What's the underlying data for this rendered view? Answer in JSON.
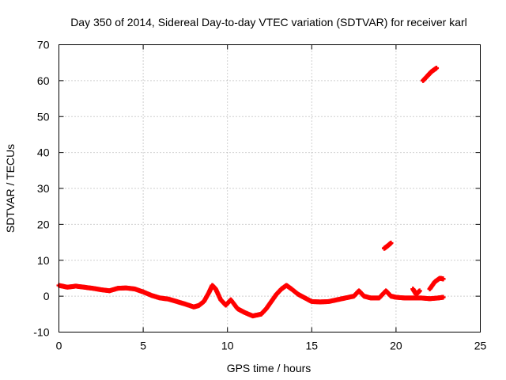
{
  "chart_data": {
    "type": "scatter",
    "title": "Day 350 of 2014, Sidereal Day-to-day VTEC variation (SDTVAR) for receiver karl",
    "xlabel": "GPS time / hours",
    "ylabel": "SDTVAR / TECUs",
    "xlim": [
      0,
      25
    ],
    "ylim": [
      -10,
      70
    ],
    "xticks": [
      0,
      5,
      10,
      15,
      20,
      25
    ],
    "yticks": [
      -10,
      0,
      10,
      20,
      30,
      40,
      50,
      60,
      70
    ],
    "grid": true,
    "series": [
      {
        "name": "SDTVAR",
        "color": "#ff0000",
        "marker": "plus",
        "segments": [
          {
            "name": "main-trace",
            "points": [
              [
                0.0,
                3.0
              ],
              [
                0.5,
                2.5
              ],
              [
                1.0,
                2.8
              ],
              [
                1.5,
                2.5
              ],
              [
                2.0,
                2.2
              ],
              [
                2.5,
                1.8
              ],
              [
                3.0,
                1.5
              ],
              [
                3.5,
                2.2
              ],
              [
                4.0,
                2.3
              ],
              [
                4.5,
                2.0
              ],
              [
                5.0,
                1.2
              ],
              [
                5.5,
                0.2
              ],
              [
                6.0,
                -0.5
              ],
              [
                6.5,
                -0.8
              ],
              [
                7.0,
                -1.5
              ],
              [
                7.5,
                -2.2
              ],
              [
                8.0,
                -3.0
              ],
              [
                8.3,
                -2.6
              ],
              [
                8.6,
                -1.5
              ],
              [
                8.9,
                1.0
              ],
              [
                9.1,
                3.0
              ],
              [
                9.3,
                2.0
              ],
              [
                9.6,
                -1.0
              ],
              [
                9.9,
                -2.5
              ],
              [
                10.2,
                -1.0
              ],
              [
                10.6,
                -3.5
              ],
              [
                11.0,
                -4.5
              ],
              [
                11.5,
                -5.5
              ],
              [
                12.0,
                -5.0
              ],
              [
                12.3,
                -3.5
              ],
              [
                12.6,
                -1.5
              ],
              [
                12.9,
                0.5
              ],
              [
                13.2,
                2.0
              ],
              [
                13.5,
                3.0
              ],
              [
                13.8,
                2.0
              ],
              [
                14.2,
                0.5
              ],
              [
                14.6,
                -0.5
              ],
              [
                15.0,
                -1.5
              ],
              [
                15.5,
                -1.6
              ],
              [
                16.0,
                -1.5
              ],
              [
                16.5,
                -1.0
              ],
              [
                17.0,
                -0.5
              ],
              [
                17.5,
                0.0
              ],
              [
                17.8,
                1.5
              ],
              [
                18.1,
                0.0
              ],
              [
                18.5,
                -0.5
              ],
              [
                19.0,
                -0.5
              ],
              [
                19.4,
                1.5
              ],
              [
                19.7,
                0.0
              ],
              [
                20.0,
                -0.3
              ],
              [
                20.5,
                -0.5
              ],
              [
                21.0,
                -0.5
              ],
              [
                21.5,
                -0.5
              ],
              [
                22.0,
                -0.7
              ],
              [
                22.5,
                -0.5
              ],
              [
                22.8,
                -0.3
              ]
            ]
          },
          {
            "name": "cluster-20",
            "points": [
              [
                19.3,
                13.3
              ],
              [
                19.5,
                14.0
              ],
              [
                19.7,
                14.8
              ]
            ]
          },
          {
            "name": "cluster-21",
            "points": [
              [
                21.0,
                2.0
              ],
              [
                21.2,
                0.5
              ],
              [
                21.4,
                1.5
              ]
            ]
          },
          {
            "name": "cluster-22",
            "points": [
              [
                22.0,
                2.0
              ],
              [
                22.3,
                4.0
              ],
              [
                22.6,
                5.0
              ],
              [
                22.8,
                4.8
              ]
            ]
          },
          {
            "name": "cluster-60",
            "points": [
              [
                21.6,
                60.0
              ],
              [
                21.9,
                61.5
              ],
              [
                22.1,
                62.5
              ],
              [
                22.4,
                63.5
              ]
            ]
          }
        ]
      }
    ]
  }
}
